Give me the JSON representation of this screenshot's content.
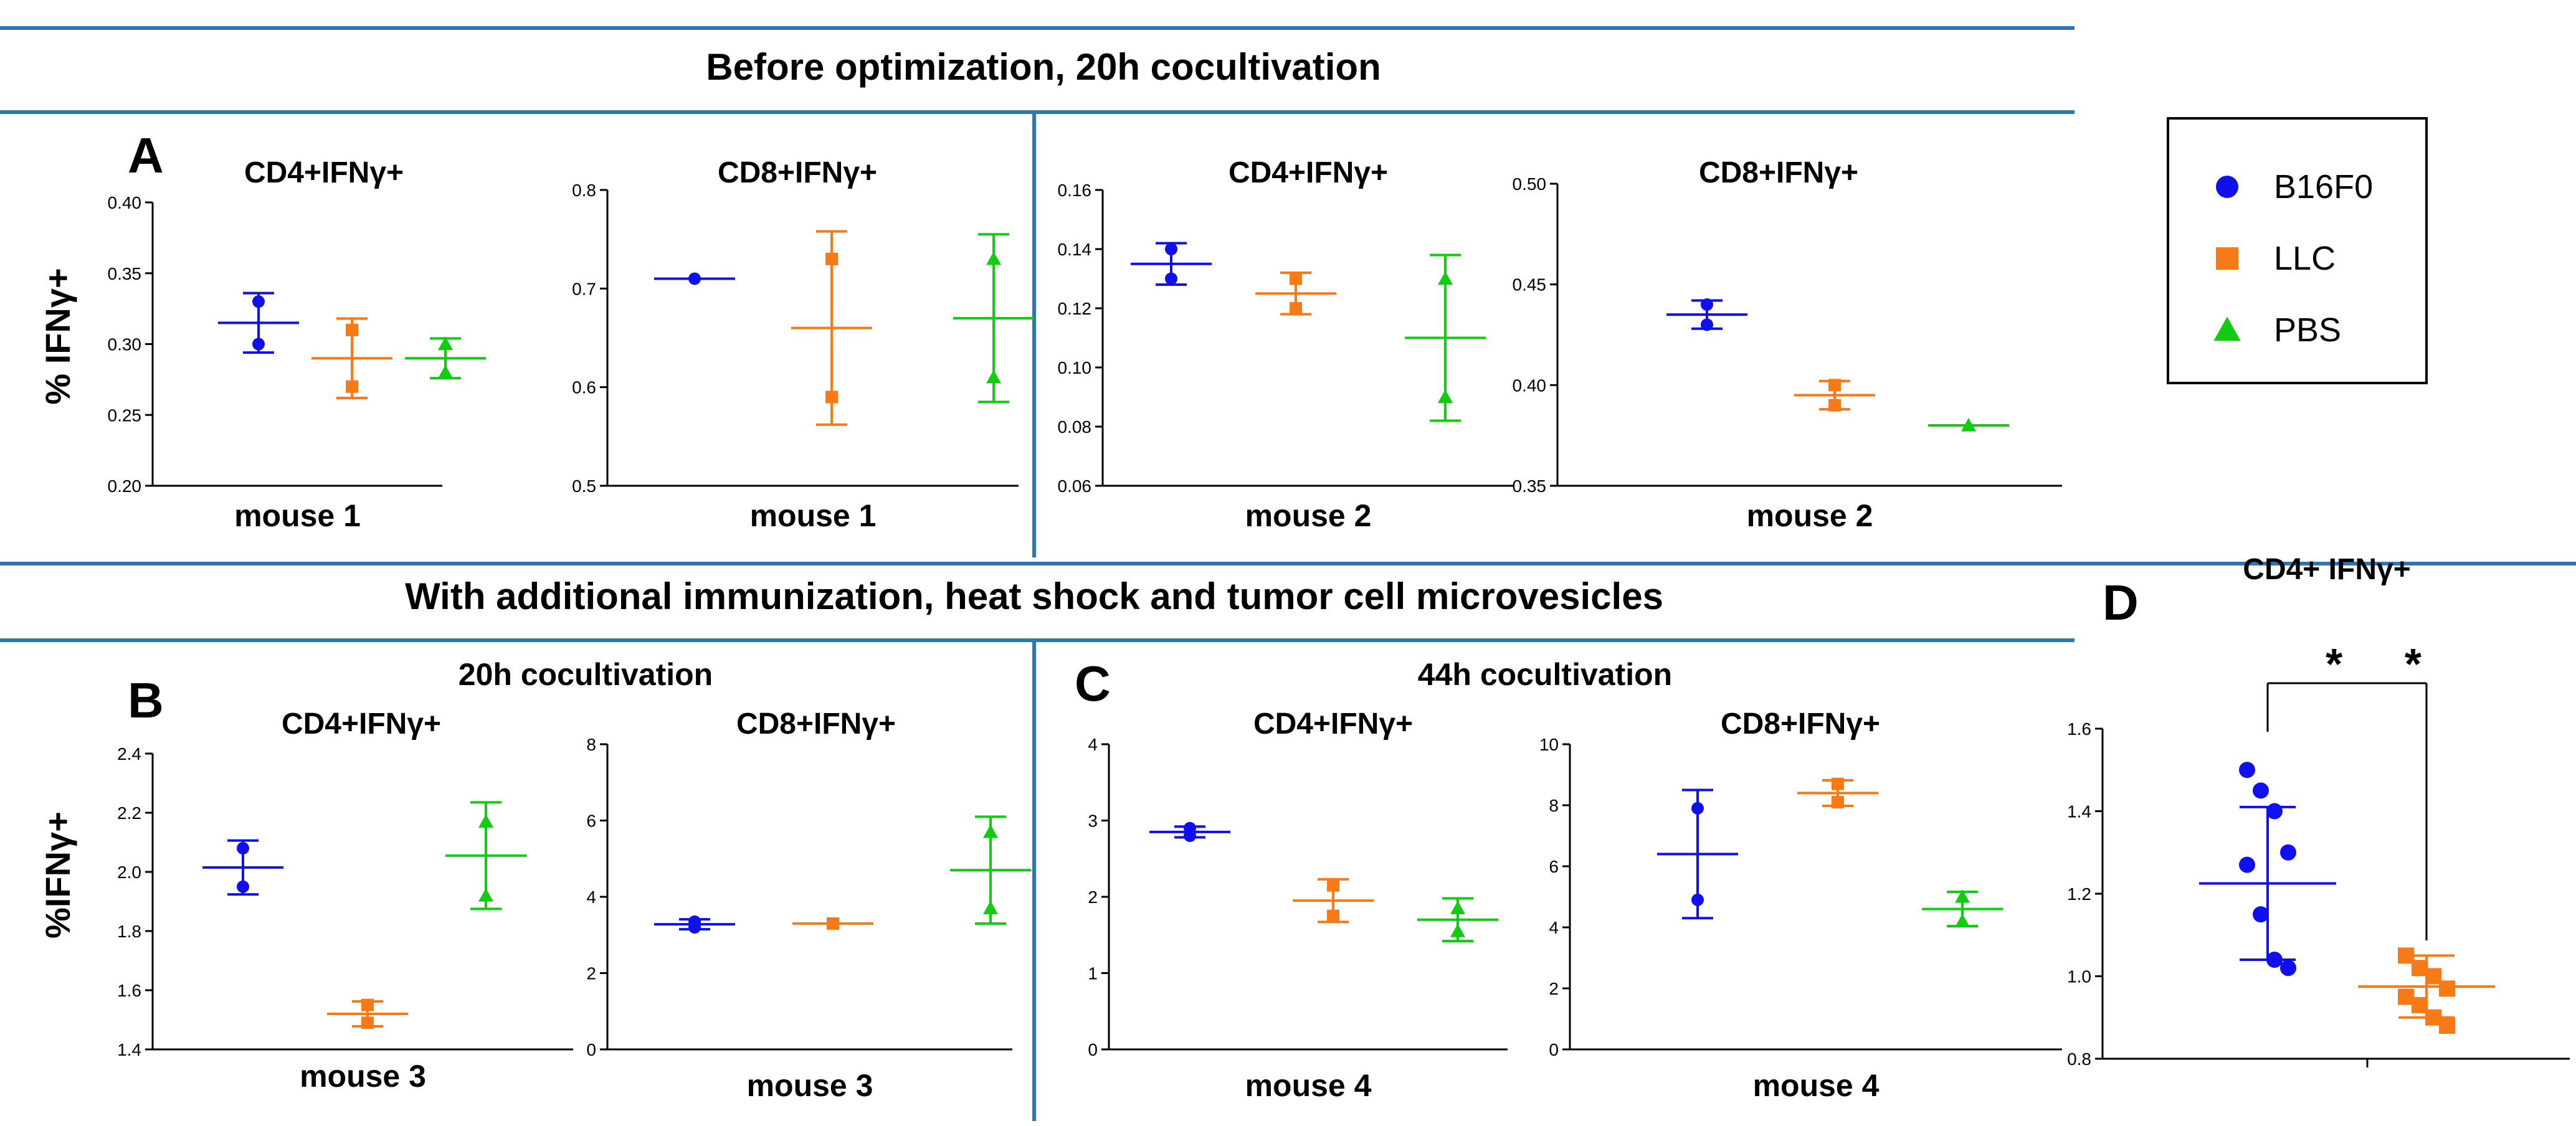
{
  "colors": {
    "B16F0": "#1010ee",
    "LLC": "#f77a16",
    "PBS": "#11cc11",
    "separator": "#2e75b6"
  },
  "header_top": "Before optimization, 20h cocultivation",
  "header_middle": "With additional immunization, heat shock and tumor cell microvesicles",
  "subheader_b": "20h cocultivation",
  "subheader_c": "44h cocultivation",
  "letters": {
    "a": "A",
    "b": "B",
    "c": "C",
    "d": "D"
  },
  "ylabel_top": "% IFNγ+",
  "ylabel_bottom": "%IFNγ+",
  "legend": [
    {
      "label": "B16F0",
      "marker": "circle",
      "color": "#1010ee"
    },
    {
      "label": "LLC",
      "marker": "square",
      "color": "#f77a16"
    },
    {
      "label": "PBS",
      "marker": "triangle",
      "color": "#11cc11"
    }
  ],
  "chart_data": [
    {
      "id": "a1",
      "type": "scatter",
      "title": "CD4+IFNγ+",
      "xlabel": "mouse 1",
      "ylim": [
        0.2,
        0.4
      ],
      "ticks": [
        0.2,
        0.25,
        0.3,
        0.35,
        0.4
      ],
      "tick_labels": [
        "0.20",
        "0.25",
        "0.30",
        "0.35",
        "0.40"
      ],
      "groups": [
        {
          "name": "B16F0",
          "points": [
            0.33,
            0.3
          ],
          "mean": 0.315,
          "err": [
            0.294,
            0.336
          ]
        },
        {
          "name": "LLC",
          "points": [
            0.31,
            0.27
          ],
          "mean": 0.29,
          "err": [
            0.262,
            0.318
          ]
        },
        {
          "name": "PBS",
          "points": [
            0.3,
            0.28
          ],
          "mean": 0.29,
          "err": [
            0.276,
            0.304
          ]
        }
      ]
    },
    {
      "id": "a2",
      "type": "scatter",
      "title": "CD8+IFNγ+",
      "xlabel": "mouse 1",
      "ylim": [
        0.5,
        0.8
      ],
      "ticks": [
        0.5,
        0.6,
        0.7,
        0.8
      ],
      "tick_labels": [
        "0.5",
        "0.6",
        "0.7",
        "0.8"
      ],
      "groups": [
        {
          "name": "B16F0",
          "points": [
            0.71
          ],
          "mean": 0.71,
          "err": null
        },
        {
          "name": "LLC",
          "points": [
            0.73,
            0.59
          ],
          "mean": 0.66,
          "err": [
            0.562,
            0.758
          ]
        },
        {
          "name": "PBS",
          "points": [
            0.73,
            0.61
          ],
          "mean": 0.67,
          "err": [
            0.585,
            0.755
          ]
        }
      ]
    },
    {
      "id": "a3",
      "type": "scatter",
      "title": "CD4+IFNγ+",
      "xlabel": "mouse 2",
      "ylim": [
        0.06,
        0.16
      ],
      "ticks": [
        0.06,
        0.08,
        0.1,
        0.12,
        0.14,
        0.16
      ],
      "tick_labels": [
        "0.06",
        "0.08",
        "0.10",
        "0.12",
        "0.14",
        "0.16"
      ],
      "groups": [
        {
          "name": "B16F0",
          "points": [
            0.14,
            0.13
          ],
          "mean": 0.135,
          "err": [
            0.128,
            0.142
          ]
        },
        {
          "name": "LLC",
          "points": [
            0.13,
            0.12
          ],
          "mean": 0.125,
          "err": [
            0.118,
            0.132
          ]
        },
        {
          "name": "PBS",
          "points": [
            0.13,
            0.09
          ],
          "mean": 0.11,
          "err": [
            0.082,
            0.138
          ]
        }
      ]
    },
    {
      "id": "a4",
      "type": "scatter",
      "title": "CD8+IFNγ+",
      "xlabel": "mouse 2",
      "ylim": [
        0.35,
        0.5
      ],
      "ticks": [
        0.35,
        0.4,
        0.45,
        0.5
      ],
      "tick_labels": [
        "0.35",
        "0.40",
        "0.45",
        "0.50"
      ],
      "groups": [
        {
          "name": "B16F0",
          "points": [
            0.44,
            0.43
          ],
          "mean": 0.435,
          "err": [
            0.428,
            0.442
          ]
        },
        {
          "name": "LLC",
          "points": [
            0.4,
            0.39
          ],
          "mean": 0.395,
          "err": [
            0.388,
            0.402
          ]
        },
        {
          "name": "PBS",
          "points": [
            0.38
          ],
          "mean": 0.38,
          "err": null
        }
      ]
    },
    {
      "id": "b1",
      "type": "scatter",
      "title": "CD4+IFNγ+",
      "xlabel": "mouse 3",
      "ylim": [
        1.4,
        2.4
      ],
      "ticks": [
        1.4,
        1.6,
        1.8,
        2.0,
        2.2,
        2.4
      ],
      "tick_labels": [
        "1.4",
        "1.6",
        "1.8",
        "2.0",
        "2.2",
        "2.4"
      ],
      "groups": [
        {
          "name": "B16F0",
          "points": [
            2.08,
            1.95
          ],
          "mean": 2.015,
          "err": [
            1.924,
            2.106
          ]
        },
        {
          "name": "LLC",
          "points": [
            1.55,
            1.49
          ],
          "mean": 1.52,
          "err": [
            1.478,
            1.562
          ]
        },
        {
          "name": "PBS",
          "points": [
            2.17,
            1.92
          ],
          "mean": 2.055,
          "err": [
            1.875,
            2.235
          ]
        }
      ]
    },
    {
      "id": "b2",
      "type": "scatter",
      "title": "CD8+IFNγ+",
      "xlabel": "mouse 3",
      "ylim": [
        0,
        8
      ],
      "ticks": [
        0,
        2,
        4,
        6,
        8
      ],
      "tick_labels": [
        "0",
        "2",
        "4",
        "6",
        "8"
      ],
      "groups": [
        {
          "name": "B16F0",
          "points": [
            3.35,
            3.2
          ],
          "mean": 3.28,
          "err": [
            3.15,
            3.41
          ]
        },
        {
          "name": "LLC",
          "points": [
            3.3
          ],
          "mean": 3.3,
          "err": null
        },
        {
          "name": "PBS",
          "points": [
            5.7,
            3.7
          ],
          "mean": 4.7,
          "err": [
            3.3,
            6.1
          ]
        }
      ]
    },
    {
      "id": "c1",
      "type": "scatter",
      "title": "CD4+IFNγ+",
      "xlabel": "mouse 4",
      "ylim": [
        0,
        4
      ],
      "ticks": [
        0,
        1,
        2,
        3,
        4
      ],
      "tick_labels": [
        "0",
        "1",
        "2",
        "3",
        "4"
      ],
      "groups": [
        {
          "name": "B16F0",
          "points": [
            2.8,
            2.9
          ],
          "mean": 2.85,
          "err": [
            2.78,
            2.92
          ]
        },
        {
          "name": "LLC",
          "points": [
            2.15,
            1.75
          ],
          "mean": 1.95,
          "err": [
            1.67,
            2.23
          ]
        },
        {
          "name": "PBS",
          "points": [
            1.85,
            1.55
          ],
          "mean": 1.7,
          "err": [
            1.42,
            1.98
          ]
        }
      ]
    },
    {
      "id": "c2",
      "type": "scatter",
      "title": "CD8+IFNγ+",
      "xlabel": "mouse 4",
      "ylim": [
        0,
        10
      ],
      "ticks": [
        0,
        2,
        4,
        6,
        8,
        10
      ],
      "tick_labels": [
        "0",
        "2",
        "4",
        "6",
        "8",
        "10"
      ],
      "groups": [
        {
          "name": "B16F0",
          "points": [
            7.9,
            4.9
          ],
          "mean": 6.4,
          "err": [
            4.3,
            8.5
          ]
        },
        {
          "name": "LLC",
          "points": [
            8.7,
            8.1
          ],
          "mean": 8.4,
          "err": [
            7.98,
            8.82
          ]
        },
        {
          "name": "PBS",
          "points": [
            5.0,
            4.2
          ],
          "mean": 4.6,
          "err": [
            4.04,
            5.16
          ]
        }
      ]
    },
    {
      "id": "d",
      "type": "scatter",
      "title": "CD4+ IFNγ+",
      "xlabel": "",
      "ylim": [
        0.8,
        1.6
      ],
      "ticks": [
        0.8,
        1.0,
        1.2,
        1.4,
        1.6
      ],
      "tick_labels": [
        "0.8",
        "1.0",
        "1.2",
        "1.4",
        "1.6"
      ],
      "significance": "* *",
      "groups": [
        {
          "name": "B16F0",
          "points": [
            1.5,
            1.45,
            1.4,
            1.3,
            1.27,
            1.15,
            1.04,
            1.02
          ],
          "mean": 1.225,
          "err": [
            1.04,
            1.41
          ]
        },
        {
          "name": "LLC",
          "points": [
            1.05,
            1.02,
            1.0,
            0.97,
            0.95,
            0.93,
            0.9,
            0.88
          ],
          "mean": 0.975,
          "err": [
            0.9,
            1.05
          ]
        }
      ]
    }
  ]
}
